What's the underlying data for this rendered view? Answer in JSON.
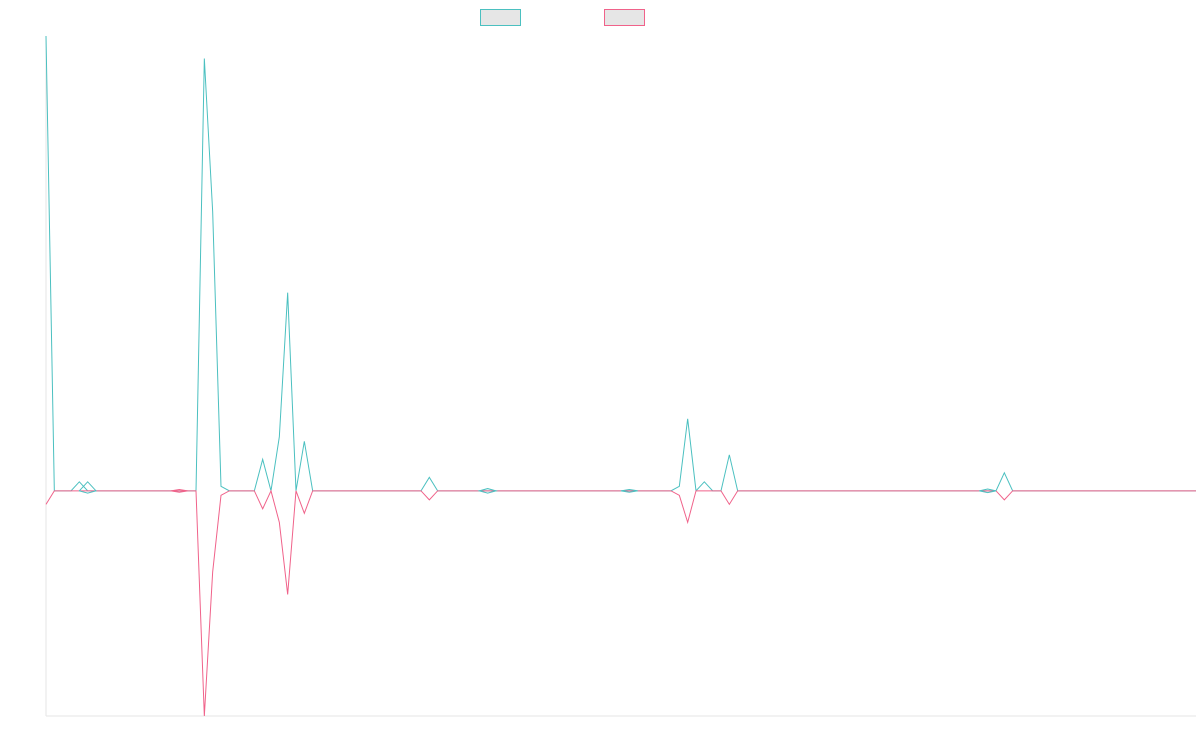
{
  "chart_data": {
    "type": "line",
    "title": "",
    "xlabel": "",
    "ylabel": "",
    "x": [
      0,
      1,
      2,
      3,
      4,
      5,
      6,
      7,
      8,
      9,
      10,
      11,
      12,
      13,
      14,
      15,
      16,
      17,
      18,
      19,
      20,
      21,
      22,
      23,
      24,
      25,
      26,
      27,
      28,
      29,
      30,
      31,
      32,
      33,
      34,
      35,
      36,
      37,
      38,
      39,
      40,
      41,
      42,
      43,
      44,
      45,
      46,
      47,
      48,
      49,
      50,
      51,
      52,
      53,
      54,
      55,
      56,
      57,
      58,
      59,
      60,
      61,
      62,
      63,
      64,
      65,
      66,
      67,
      68,
      69,
      70,
      71,
      72,
      73,
      74,
      75,
      76,
      77,
      78,
      79,
      80,
      81,
      82,
      83,
      84,
      85,
      86,
      87,
      88,
      89,
      90,
      91,
      92,
      93,
      94,
      95,
      96,
      97,
      98,
      99,
      100,
      101,
      102,
      103,
      104,
      105,
      106,
      107,
      108,
      109,
      110,
      111,
      112,
      113,
      114,
      115,
      116,
      117,
      118,
      119,
      120,
      121,
      122,
      123,
      124,
      125,
      126,
      127,
      128,
      129,
      130,
      131,
      132,
      133,
      134,
      135,
      136,
      137,
      138
    ],
    "series": [
      {
        "name": "",
        "color": "#4bc0c0",
        "values": [
          101,
          0,
          0,
          0,
          2,
          0,
          0,
          0,
          0,
          0,
          0,
          0,
          0,
          0,
          0,
          0,
          0,
          0,
          0,
          96,
          62,
          1,
          0,
          0,
          0,
          0,
          7,
          0,
          12,
          44,
          0,
          11,
          0,
          0,
          0,
          0,
          0,
          0,
          0,
          0,
          0,
          0,
          0,
          0,
          0,
          0,
          3,
          0,
          0,
          0,
          0,
          0,
          0,
          0,
          0,
          0,
          0,
          0,
          0,
          0,
          0,
          0,
          0,
          0,
          0,
          0,
          0,
          0,
          0,
          0,
          0,
          0,
          0,
          0,
          0,
          0,
          1,
          16,
          0,
          2,
          0,
          0,
          8,
          0,
          0,
          0,
          0,
          0,
          0,
          0,
          0,
          0,
          0,
          0,
          0,
          0,
          0,
          0,
          0,
          0,
          0,
          0,
          0,
          0,
          0,
          0,
          0,
          0,
          0,
          0,
          0,
          0,
          0,
          0,
          0,
          4,
          0,
          0,
          0,
          0,
          0,
          0,
          0,
          0,
          0,
          0,
          0,
          0,
          0,
          0,
          0,
          0,
          0,
          0,
          0,
          0,
          0,
          0,
          0
        ]
      },
      {
        "name": "",
        "color": "#f0628a",
        "values": [
          -3,
          0,
          0,
          0,
          0,
          0,
          0,
          0,
          0,
          0,
          0,
          0,
          0,
          0,
          0,
          0,
          0,
          0,
          0,
          -50,
          -18,
          -1,
          0,
          0,
          0,
          0,
          -4,
          0,
          -7,
          -23,
          0,
          -5,
          0,
          0,
          0,
          0,
          0,
          0,
          0,
          0,
          0,
          0,
          0,
          0,
          0,
          0,
          -2,
          0,
          0,
          0,
          0,
          0,
          0,
          0,
          0,
          0,
          0,
          0,
          0,
          0,
          0,
          0,
          0,
          0,
          0,
          0,
          0,
          0,
          0,
          0,
          0,
          0,
          0,
          0,
          0,
          0,
          -1,
          -7,
          0,
          0,
          0,
          0,
          -3,
          0,
          0,
          0,
          0,
          0,
          0,
          0,
          0,
          0,
          0,
          0,
          0,
          0,
          0,
          0,
          0,
          0,
          0,
          0,
          0,
          0,
          0,
          0,
          0,
          0,
          0,
          0,
          0,
          0,
          0,
          0,
          0,
          -2,
          0,
          0,
          0,
          0,
          0,
          0,
          0,
          0,
          0,
          0,
          0,
          0,
          0,
          0,
          0,
          0,
          0,
          0,
          0,
          0,
          0,
          0,
          0
        ]
      }
    ],
    "markers": [
      {
        "series": 0,
        "x": 5,
        "values": [
          2,
          -0.5
        ]
      },
      {
        "series": 1,
        "x": 16,
        "values": [
          0.3,
          -0.3
        ]
      },
      {
        "series": 0,
        "x": 53,
        "values": [
          0.5,
          -0.5
        ]
      },
      {
        "series": 0,
        "x": 70,
        "values": [
          0.3,
          -0.3
        ]
      },
      {
        "series": 0,
        "x": 113,
        "values": [
          0.4,
          -0.4
        ]
      }
    ],
    "ylim": [
      -50,
      101
    ],
    "xlim": [
      0,
      138
    ],
    "grid": false,
    "legend": {
      "position": "top",
      "entries": [
        {
          "label": "",
          "stroke": "#4bc0c0",
          "fill": "#e6e6e6"
        },
        {
          "label": "",
          "stroke": "#f0628a",
          "fill": "#e6e6e6"
        }
      ]
    }
  }
}
